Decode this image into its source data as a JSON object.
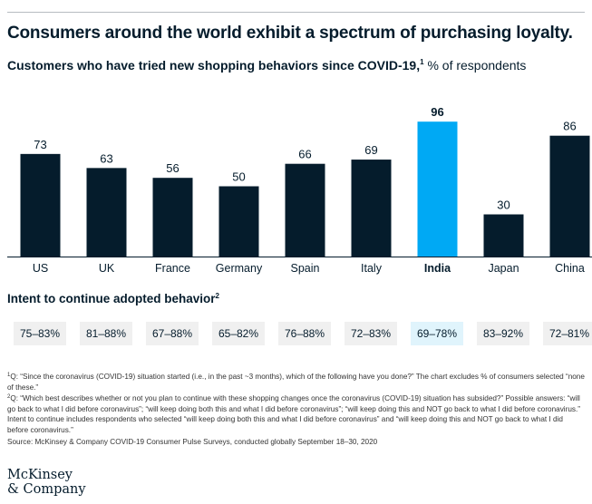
{
  "title": "Consumers around the world exhibit a spectrum of purchasing loyalty.",
  "subtitle": {
    "main": "Customers who have tried new shopping behaviors since COVID-19,",
    "footnote_mark": "1",
    "unit": " % of respondents"
  },
  "chart_data": {
    "type": "bar",
    "categories": [
      "US",
      "UK",
      "France",
      "Germany",
      "Spain",
      "Italy",
      "India",
      "Japan",
      "China"
    ],
    "values": [
      73,
      63,
      56,
      50,
      66,
      69,
      96,
      30,
      86
    ],
    "highlight": "India",
    "ylim": [
      0,
      100
    ],
    "xlabel": "",
    "ylabel": "",
    "grid": false,
    "colors": {
      "bar": "#051c2c",
      "highlight": "#00a9f4",
      "axis": "#051c2c"
    }
  },
  "intent": {
    "title": "Intent to continue adopted behavior",
    "footnote_mark": "2",
    "ranges": [
      "75–83%",
      "81–88%",
      "67–88%",
      "65–82%",
      "76–88%",
      "72–83%",
      "69–78%",
      "83–92%",
      "72–81%"
    ]
  },
  "footnotes": [
    {
      "mark": "1",
      "text": "Q: “Since the coronavirus (COVID-19) situation started (i.e., in the past ~3 months), which of the following have you done?” The chart excludes % of consumers selected “none of these.”"
    },
    {
      "mark": "2",
      "text": "Q: “Which best describes whether or not you plan to continue with these shopping changes once the coronavirus (COVID-19) situation has subsided?” Possible answers: “will go back to what I did before coronavirus”; “will keep doing both this and what I did before coronavirus”; “will keep doing this and NOT go back to what I did before coronavirus.” Intent to continue includes respondents who selected “will keep doing both this and what I did before coronavirus” and “will keep doing this and NOT go back to what I did before coronavirus.”"
    }
  ],
  "source": "Source: McKinsey & Company COVID-19 Consumer Pulse Surveys, conducted globally September 18–30, 2020",
  "logo": {
    "line1": "McKinsey",
    "line2": "& Company"
  }
}
